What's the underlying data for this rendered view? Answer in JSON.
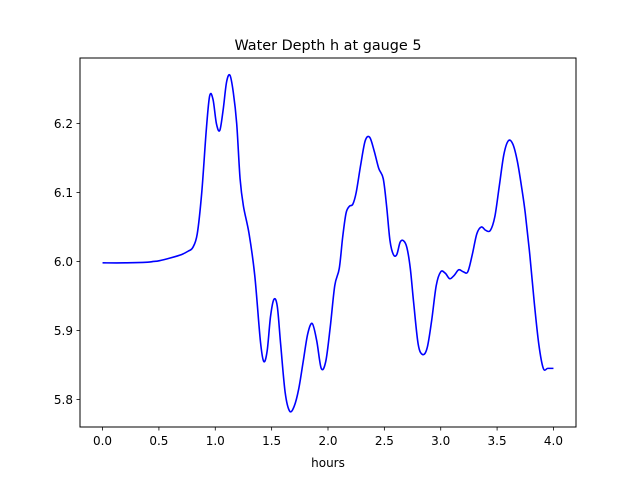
{
  "chart_data": {
    "type": "line",
    "title": "Water Depth h at gauge 5",
    "xlabel": "hours",
    "ylabel": "",
    "xlim": [
      -0.2,
      4.2
    ],
    "ylim": [
      5.76,
      6.295
    ],
    "grid": false,
    "x_ticks": [
      {
        "value": 0.0,
        "label": "0.0"
      },
      {
        "value": 0.5,
        "label": "0.5"
      },
      {
        "value": 1.0,
        "label": "1.0"
      },
      {
        "value": 1.5,
        "label": "1.5"
      },
      {
        "value": 2.0,
        "label": "2.0"
      },
      {
        "value": 2.5,
        "label": "2.5"
      },
      {
        "value": 3.0,
        "label": "3.0"
      },
      {
        "value": 3.5,
        "label": "3.5"
      },
      {
        "value": 4.0,
        "label": "4.0"
      }
    ],
    "y_ticks": [
      {
        "value": 5.8,
        "label": "5.8"
      },
      {
        "value": 5.9,
        "label": "5.9"
      },
      {
        "value": 6.0,
        "label": "6.0"
      },
      {
        "value": 6.1,
        "label": "6.1"
      },
      {
        "value": 6.2,
        "label": "6.2"
      }
    ],
    "series": [
      {
        "color": "#0000ff",
        "x": [
          0.0,
          0.2,
          0.4,
          0.45,
          0.5,
          0.6,
          0.7,
          0.76,
          0.8,
          0.84,
          0.88,
          0.92,
          0.95,
          0.98,
          1.01,
          1.04,
          1.07,
          1.1,
          1.13,
          1.16,
          1.19,
          1.22,
          1.25,
          1.3,
          1.35,
          1.4,
          1.43,
          1.46,
          1.49,
          1.52,
          1.55,
          1.58,
          1.62,
          1.66,
          1.7,
          1.74,
          1.78,
          1.82,
          1.86,
          1.9,
          1.94,
          1.98,
          2.02,
          2.06,
          2.1,
          2.13,
          2.16,
          2.19,
          2.22,
          2.25,
          2.29,
          2.33,
          2.37,
          2.41,
          2.45,
          2.49,
          2.52,
          2.55,
          2.58,
          2.61,
          2.64,
          2.67,
          2.7,
          2.73,
          2.76,
          2.8,
          2.84,
          2.88,
          2.92,
          2.96,
          3.0,
          3.04,
          3.08,
          3.12,
          3.16,
          3.2,
          3.24,
          3.28,
          3.32,
          3.36,
          3.4,
          3.44,
          3.48,
          3.52,
          3.56,
          3.6,
          3.64,
          3.68,
          3.72,
          3.75,
          3.79,
          3.83,
          3.87,
          3.91,
          3.95,
          4.0
        ],
        "y": [
          5.998,
          5.998,
          5.999,
          6.0,
          6.001,
          6.005,
          6.01,
          6.015,
          6.02,
          6.04,
          6.1,
          6.19,
          6.24,
          6.235,
          6.2,
          6.19,
          6.22,
          6.26,
          6.27,
          6.245,
          6.2,
          6.12,
          6.08,
          6.04,
          5.98,
          5.885,
          5.855,
          5.87,
          5.92,
          5.945,
          5.935,
          5.88,
          5.81,
          5.783,
          5.79,
          5.815,
          5.855,
          5.895,
          5.91,
          5.885,
          5.845,
          5.855,
          5.905,
          5.965,
          5.99,
          6.035,
          6.07,
          6.08,
          6.083,
          6.1,
          6.14,
          6.175,
          6.18,
          6.16,
          6.135,
          6.12,
          6.08,
          6.03,
          6.01,
          6.01,
          6.028,
          6.03,
          6.02,
          5.99,
          5.94,
          5.88,
          5.865,
          5.875,
          5.915,
          5.965,
          5.985,
          5.983,
          5.975,
          5.98,
          5.988,
          5.985,
          5.985,
          6.01,
          6.04,
          6.05,
          6.045,
          6.045,
          6.065,
          6.11,
          6.155,
          6.175,
          6.17,
          6.145,
          6.105,
          6.07,
          6.01,
          5.94,
          5.88,
          5.845,
          5.845,
          5.845
        ]
      }
    ]
  }
}
